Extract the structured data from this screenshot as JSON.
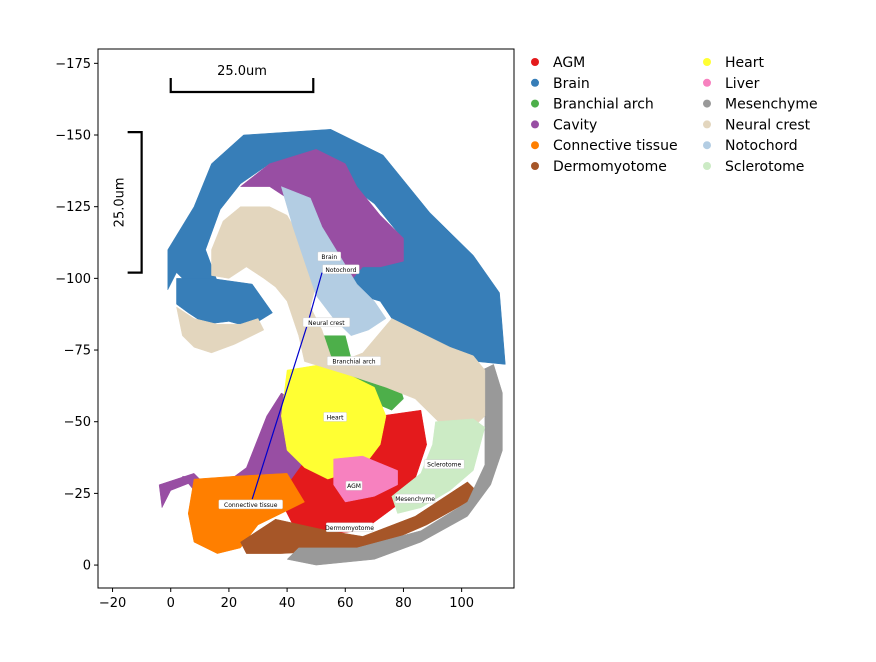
{
  "chart_data": {
    "type": "scatter",
    "title": "",
    "xlabel": "",
    "ylabel": "",
    "xlim": [
      -25,
      118
    ],
    "ylim": [
      -180,
      8
    ],
    "y_inverted": true,
    "grid": false,
    "legend_placement": "outside-right, 2 columns",
    "xticks": [
      -20,
      0,
      20,
      40,
      60,
      80,
      100
    ],
    "yticks": [
      -175,
      -150,
      -125,
      -100,
      -75,
      -50,
      -25,
      0
    ],
    "xtick_labels": [
      "−20",
      "0",
      "20",
      "40",
      "60",
      "80",
      "100"
    ],
    "ytick_labels": [
      "−175",
      "−150",
      "−125",
      "−100",
      "−75",
      "−50",
      "−25",
      "0"
    ],
    "scalebars": [
      {
        "orientation": "horizontal",
        "label": "25.0um",
        "x": [
          0,
          49
        ],
        "y": -165
      },
      {
        "orientation": "vertical",
        "label": "25.0um",
        "x": -10,
        "y": [
          -102,
          -151
        ]
      }
    ],
    "series": [
      {
        "name": "AGM",
        "color": "#e41a1c",
        "regions": [
          [
            [
              48,
              -40
            ],
            [
              72,
              -52
            ],
            [
              86,
              -54
            ],
            [
              88,
              -42
            ],
            [
              82,
              -24
            ],
            [
              66,
              -12
            ],
            [
              44,
              -10
            ],
            [
              38,
              -22
            ],
            [
              40,
              -33
            ]
          ]
        ]
      },
      {
        "name": "Brain",
        "color": "#377eb8",
        "regions": [
          [
            [
              25,
              -150
            ],
            [
              55,
              -152
            ],
            [
              73,
              -143
            ],
            [
              89,
              -123
            ],
            [
              104,
              -108
            ],
            [
              113,
              -95
            ],
            [
              115,
              -70
            ],
            [
              105,
              -71
            ],
            [
              90,
              -77
            ],
            [
              76,
              -86
            ],
            [
              72,
              -92
            ],
            [
              62,
              -95
            ],
            [
              60,
              -104
            ],
            [
              70,
              -108
            ],
            [
              78,
              -116
            ],
            [
              70,
              -126
            ],
            [
              58,
              -135
            ],
            [
              48,
              -140
            ],
            [
              34,
              -140
            ],
            [
              24,
              -133
            ],
            [
              17,
              -124
            ],
            [
              12,
              -110
            ],
            [
              16,
              -99
            ],
            [
              6,
              -98
            ],
            [
              2,
              -102
            ],
            [
              -1,
              -96
            ],
            [
              -1,
              -110
            ],
            [
              8,
              -125
            ],
            [
              14,
              -140
            ]
          ],
          [
            [
              2,
              -100
            ],
            [
              14,
              -100
            ],
            [
              28,
              -98
            ],
            [
              35,
              -88
            ],
            [
              27,
              -83
            ],
            [
              20,
              -85
            ],
            [
              12,
              -84
            ],
            [
              6,
              -88
            ],
            [
              2,
              -91
            ]
          ]
        ]
      },
      {
        "name": "Branchial arch",
        "color": "#4daf4a",
        "regions": [
          [
            [
              48,
              -80
            ],
            [
              60,
              -80
            ],
            [
              62,
              -72
            ],
            [
              70,
              -70
            ],
            [
              77,
              -68
            ],
            [
              80,
              -58
            ],
            [
              76,
              -54
            ],
            [
              62,
              -60
            ],
            [
              52,
              -68
            ],
            [
              46,
              -74
            ]
          ]
        ]
      },
      {
        "name": "Cavity",
        "color": "#984ea3",
        "regions": [
          [
            [
              24,
              -132
            ],
            [
              34,
              -140
            ],
            [
              50,
              -145
            ],
            [
              60,
              -140
            ],
            [
              64,
              -132
            ],
            [
              72,
              -122
            ],
            [
              80,
              -114
            ],
            [
              80,
              -106
            ],
            [
              72,
              -104
            ],
            [
              66,
              -104
            ],
            [
              60,
              -97
            ],
            [
              56,
              -95
            ],
            [
              52,
              -108
            ],
            [
              46,
              -118
            ],
            [
              40,
              -128
            ],
            [
              34,
              -132
            ]
          ],
          [
            [
              33,
              -52
            ],
            [
              38,
              -60
            ],
            [
              45,
              -56
            ],
            [
              45,
              -35
            ],
            [
              40,
              -28
            ],
            [
              32,
              -26
            ],
            [
              20,
              -26
            ],
            [
              10,
              -30
            ],
            [
              4,
              -31
            ],
            [
              8,
              -26
            ],
            [
              18,
              -28
            ],
            [
              26,
              -34
            ]
          ],
          [
            [
              52,
              -51
            ],
            [
              58,
              -51
            ],
            [
              58,
              -44
            ],
            [
              52,
              -44
            ]
          ],
          [
            [
              -4,
              -28
            ],
            [
              8,
              -32
            ],
            [
              10,
              -30
            ],
            [
              0,
              -26
            ],
            [
              -3,
              -20
            ]
          ]
        ]
      },
      {
        "name": "Connective tissue",
        "color": "#ff7f00",
        "regions": [
          [
            [
              8,
              -30
            ],
            [
              22,
              -31
            ],
            [
              40,
              -32
            ],
            [
              46,
              -22
            ],
            [
              38,
              -18
            ],
            [
              30,
              -14
            ],
            [
              24,
              -6
            ],
            [
              16,
              -4
            ],
            [
              8,
              -8
            ],
            [
              6,
              -18
            ]
          ]
        ]
      },
      {
        "name": "Dermomyotome",
        "color": "#a65628",
        "regions": [
          [
            [
              24,
              -8
            ],
            [
              36,
              -16
            ],
            [
              54,
              -12
            ],
            [
              66,
              -10
            ],
            [
              84,
              -17
            ],
            [
              102,
              -29
            ],
            [
              105,
              -26
            ],
            [
              102,
              -22
            ],
            [
              88,
              -14
            ],
            [
              72,
              -7
            ],
            [
              56,
              -5
            ],
            [
              38,
              -4
            ],
            [
              26,
              -4
            ]
          ]
        ]
      },
      {
        "name": "Heart",
        "color": "#ffff33",
        "regions": [
          [
            [
              40,
              -68
            ],
            [
              52,
              -70
            ],
            [
              62,
              -66
            ],
            [
              70,
              -62
            ],
            [
              74,
              -52
            ],
            [
              72,
              -42
            ],
            [
              66,
              -34
            ],
            [
              54,
              -30
            ],
            [
              46,
              -34
            ],
            [
              40,
              -40
            ],
            [
              38,
              -52
            ]
          ]
        ]
      },
      {
        "name": "Liver",
        "color": "#f781bf",
        "regions": [
          [
            [
              56,
              -37
            ],
            [
              66,
              -38
            ],
            [
              78,
              -33
            ],
            [
              78,
              -28
            ],
            [
              70,
              -24
            ],
            [
              60,
              -22
            ],
            [
              56,
              -28
            ]
          ]
        ]
      },
      {
        "name": "Mesenchyme",
        "color": "#999999",
        "regions": [
          [
            [
              111,
              -70
            ],
            [
              114,
              -60
            ],
            [
              114,
              -40
            ],
            [
              110,
              -28
            ],
            [
              102,
              -17
            ],
            [
              86,
              -8
            ],
            [
              70,
              -2
            ],
            [
              50,
              0
            ],
            [
              40,
              -2
            ],
            [
              44,
              -6
            ],
            [
              64,
              -6
            ],
            [
              86,
              -12
            ],
            [
              102,
              -22
            ],
            [
              108,
              -35
            ],
            [
              108,
              -55
            ],
            [
              107,
              -68
            ]
          ]
        ]
      },
      {
        "name": "Neural crest",
        "color": "#e3d6be",
        "regions": [
          [
            [
              24,
              -125
            ],
            [
              34,
              -125
            ],
            [
              40,
              -122
            ],
            [
              44,
              -115
            ],
            [
              48,
              -110
            ],
            [
              50,
              -98
            ],
            [
              48,
              -90
            ],
            [
              52,
              -82
            ],
            [
              56,
              -70
            ],
            [
              66,
              -74
            ],
            [
              76,
              -86
            ],
            [
              84,
              -82
            ],
            [
              96,
              -76
            ],
            [
              104,
              -73
            ],
            [
              108,
              -68
            ],
            [
              108,
              -52
            ],
            [
              104,
              -48
            ],
            [
              92,
              -50
            ],
            [
              84,
              -58
            ],
            [
              74,
              -62
            ],
            [
              62,
              -66
            ],
            [
              46,
              -71
            ],
            [
              44,
              -80
            ],
            [
              40,
              -92
            ],
            [
              36,
              -97
            ],
            [
              32,
              -100
            ],
            [
              26,
              -104
            ],
            [
              20,
              -100
            ],
            [
              14,
              -101
            ],
            [
              14,
              -110
            ],
            [
              18,
              -120
            ]
          ],
          [
            [
              2,
              -90
            ],
            [
              8,
              -86
            ],
            [
              16,
              -84
            ],
            [
              24,
              -84
            ],
            [
              30,
              -86
            ],
            [
              32,
              -82
            ],
            [
              22,
              -77
            ],
            [
              14,
              -74
            ],
            [
              8,
              -76
            ],
            [
              4,
              -80
            ]
          ]
        ]
      },
      {
        "name": "Notochord",
        "color": "#b3cde3",
        "regions": [
          [
            [
              38,
              -132
            ],
            [
              48,
              -128
            ],
            [
              52,
              -118
            ],
            [
              58,
              -108
            ],
            [
              64,
              -98
            ],
            [
              70,
              -92
            ],
            [
              74,
              -86
            ],
            [
              68,
              -82
            ],
            [
              62,
              -80
            ],
            [
              56,
              -86
            ],
            [
              50,
              -94
            ],
            [
              46,
              -106
            ],
            [
              42,
              -118
            ]
          ]
        ]
      },
      {
        "name": "Sclerotome",
        "color": "#ccebc5",
        "regions": [
          [
            [
              91,
              -50
            ],
            [
              104,
              -51
            ],
            [
              108,
              -48
            ],
            [
              104,
              -33
            ],
            [
              96,
              -26
            ],
            [
              86,
              -20
            ],
            [
              78,
              -18
            ],
            [
              76,
              -24
            ],
            [
              86,
              -32
            ],
            [
              90,
              -42
            ]
          ]
        ]
      }
    ],
    "annotations": [
      {
        "text": "Brain",
        "x": 54.5,
        "y": -107.5
      },
      {
        "text": "Notochord",
        "x": 58.5,
        "y": -103
      },
      {
        "text": "Neural crest",
        "x": 53.5,
        "y": -84.5
      },
      {
        "text": "Branchial arch",
        "x": 63,
        "y": -71
      },
      {
        "text": "Heart",
        "x": 56.5,
        "y": -51.5
      },
      {
        "text": "Sclerotome",
        "x": 94,
        "y": -35
      },
      {
        "text": "AGM",
        "x": 63,
        "y": -27.5
      },
      {
        "text": "Mesenchyme",
        "x": 84,
        "y": -23
      },
      {
        "text": "Connective tissue",
        "x": 27.5,
        "y": -21
      },
      {
        "text": "Dermomyotome",
        "x": 61.5,
        "y": -13
      }
    ],
    "connector": {
      "color": "#0000cc",
      "points": [
        [
          28,
          -23
        ],
        [
          47,
          -84
        ],
        [
          52,
          -102
        ]
      ]
    }
  }
}
